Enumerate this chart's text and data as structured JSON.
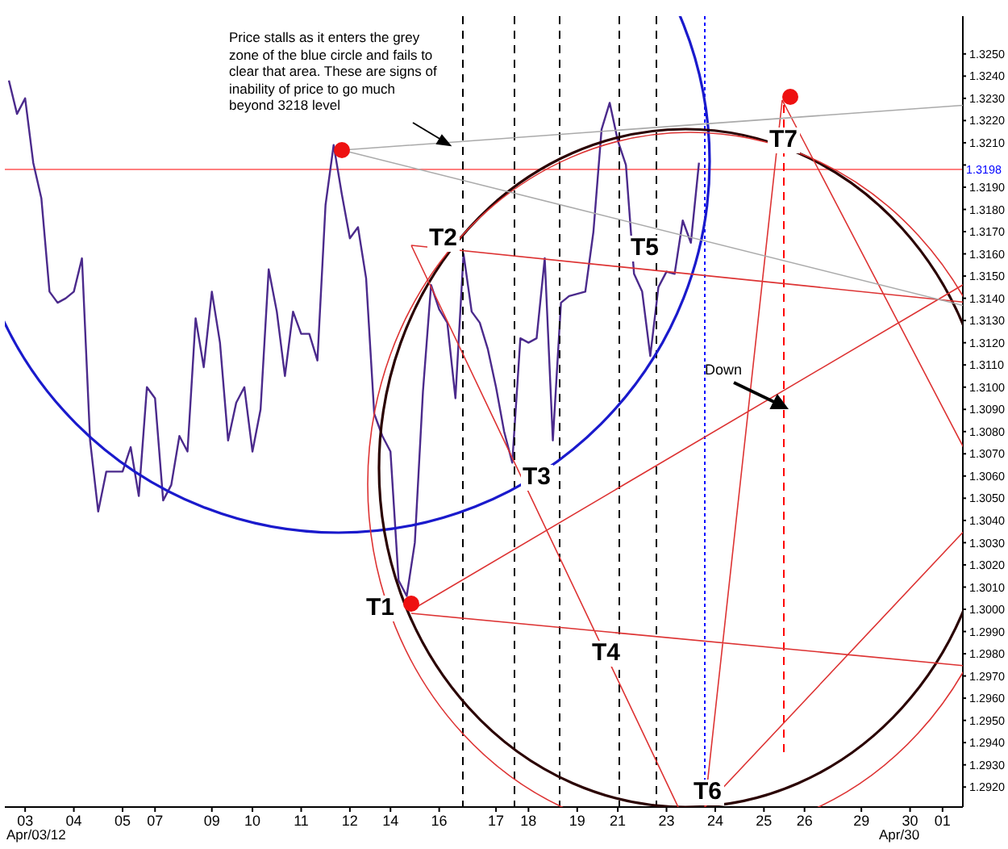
{
  "chart_data": {
    "type": "line",
    "categories": [
      null,
      null,
      "03",
      null,
      null,
      null,
      null,
      null,
      "04",
      null,
      null,
      null,
      null,
      null,
      "05",
      null,
      null,
      null,
      "07",
      null,
      null,
      null,
      null,
      null,
      null,
      "09",
      null,
      null,
      null,
      null,
      "10",
      null,
      null,
      null,
      null,
      null,
      "11",
      null,
      null,
      null,
      null,
      null,
      "12",
      null,
      null,
      null,
      null,
      "14",
      null,
      null,
      null,
      null,
      null,
      "16",
      null,
      null,
      null,
      null,
      null,
      null,
      "17",
      null,
      null,
      null,
      "18",
      null,
      null,
      null,
      null,
      null,
      "19",
      null,
      null,
      null,
      null,
      "21",
      null,
      null,
      null,
      null,
      null,
      "23",
      null,
      null,
      null,
      null,
      null,
      "24",
      null,
      null,
      null,
      null,
      null,
      "25",
      null,
      null,
      null,
      null,
      "26",
      null,
      null,
      null,
      null,
      null,
      null,
      "29",
      null,
      null,
      null,
      null,
      null,
      "30",
      null,
      null,
      null,
      "01",
      null,
      null
    ],
    "series": [
      {
        "color": "#4b2a8c",
        "values": [
          1.3238,
          1.3223,
          1.323,
          1.3201,
          1.3185,
          1.3143,
          1.3138,
          1.314,
          1.3143,
          1.3158,
          1.3076,
          1.3044,
          1.3062,
          1.3062,
          1.3062,
          1.3073,
          1.3051,
          1.31,
          1.3095,
          1.3049,
          1.3056,
          1.3078,
          1.3071,
          1.3131,
          1.3109,
          1.3143,
          1.312,
          1.3076,
          1.3093,
          1.31,
          1.3071,
          1.309,
          1.3153,
          1.3134,
          1.3105,
          1.3134,
          1.3124,
          1.3124,
          1.3112,
          1.3182,
          1.3209,
          1.3187,
          1.3167,
          1.3172,
          1.3149,
          1.3088,
          1.3078,
          1.3071,
          1.3013,
          1.3006,
          1.303,
          1.3098,
          1.3146,
          1.3135,
          1.3129,
          1.3095,
          1.316,
          1.3134,
          1.3129,
          1.3117,
          1.31,
          1.308,
          1.3066,
          1.3122,
          1.312,
          1.3122,
          1.3158,
          1.3076,
          1.3138,
          1.3141,
          1.3142,
          1.3143,
          1.317,
          1.3216,
          1.3228,
          1.3211,
          1.32,
          1.3151,
          1.3143,
          1.3114,
          1.3145,
          1.3152,
          1.3151,
          1.3175,
          1.3165,
          1.3201,
          null,
          null,
          null,
          null,
          null,
          null,
          null,
          null,
          null,
          null,
          null,
          null,
          null,
          null,
          null,
          null,
          null,
          null,
          null,
          null,
          null,
          null,
          null,
          null,
          null,
          null,
          null,
          null,
          null,
          null,
          null,
          null
        ]
      }
    ],
    "ylim": [
      1.2911,
      1.3267
    ],
    "yticks": [
      {
        "value": 1.292,
        "label": "1.2920"
      },
      {
        "value": 1.293,
        "label": "1.2930"
      },
      {
        "value": 1.294,
        "label": "1.2940"
      },
      {
        "value": 1.295,
        "label": "1.2950"
      },
      {
        "value": 1.296,
        "label": "1.2960"
      },
      {
        "value": 1.297,
        "label": "1.2970"
      },
      {
        "value": 1.298,
        "label": "1.2980"
      },
      {
        "value": 1.299,
        "label": "1.2990"
      },
      {
        "value": 1.3,
        "label": "1.3000"
      },
      {
        "value": 1.301,
        "label": "1.3010"
      },
      {
        "value": 1.302,
        "label": "1.3020"
      },
      {
        "value": 1.303,
        "label": "1.3030"
      },
      {
        "value": 1.304,
        "label": "1.3040"
      },
      {
        "value": 1.305,
        "label": "1.3050"
      },
      {
        "value": 1.306,
        "label": "1.3060"
      },
      {
        "value": 1.307,
        "label": "1.3070"
      },
      {
        "value": 1.308,
        "label": "1.3080"
      },
      {
        "value": 1.309,
        "label": "1.3090"
      },
      {
        "value": 1.31,
        "label": "1.3100"
      },
      {
        "value": 1.311,
        "label": "1.3110"
      },
      {
        "value": 1.312,
        "label": "1.3120"
      },
      {
        "value": 1.313,
        "label": "1.3130"
      },
      {
        "value": 1.314,
        "label": "1.3140"
      },
      {
        "value": 1.315,
        "label": "1.3150"
      },
      {
        "value": 1.316,
        "label": "1.3160"
      },
      {
        "value": 1.317,
        "label": "1.3170"
      },
      {
        "value": 1.318,
        "label": "1.3180"
      },
      {
        "value": 1.319,
        "label": "1.3190"
      },
      {
        "value": 1.32,
        "label": null
      },
      {
        "value": 1.321,
        "label": "1.3210"
      },
      {
        "value": 1.322,
        "label": "1.3220"
      },
      {
        "value": 1.323,
        "label": "1.3230"
      },
      {
        "value": 1.324,
        "label": "1.3240"
      },
      {
        "value": 1.325,
        "label": "1.3250"
      }
    ],
    "ref_lines": [
      {
        "axis": "y",
        "value": 1.3198,
        "label": "1.3198",
        "color": "#ff0000"
      }
    ],
    "annotations": [
      "Price stalls as it enters the grey zone of the blue circle and fails to clear that area.  These are signs of inability of price to go much beyond 3218 level",
      "Apr/03/12",
      "Apr/30",
      "T1",
      "T2",
      "T3",
      "T4",
      "T5",
      "T6",
      "T7",
      "Down"
    ],
    "marker": "none",
    "line_style": "solid"
  }
}
